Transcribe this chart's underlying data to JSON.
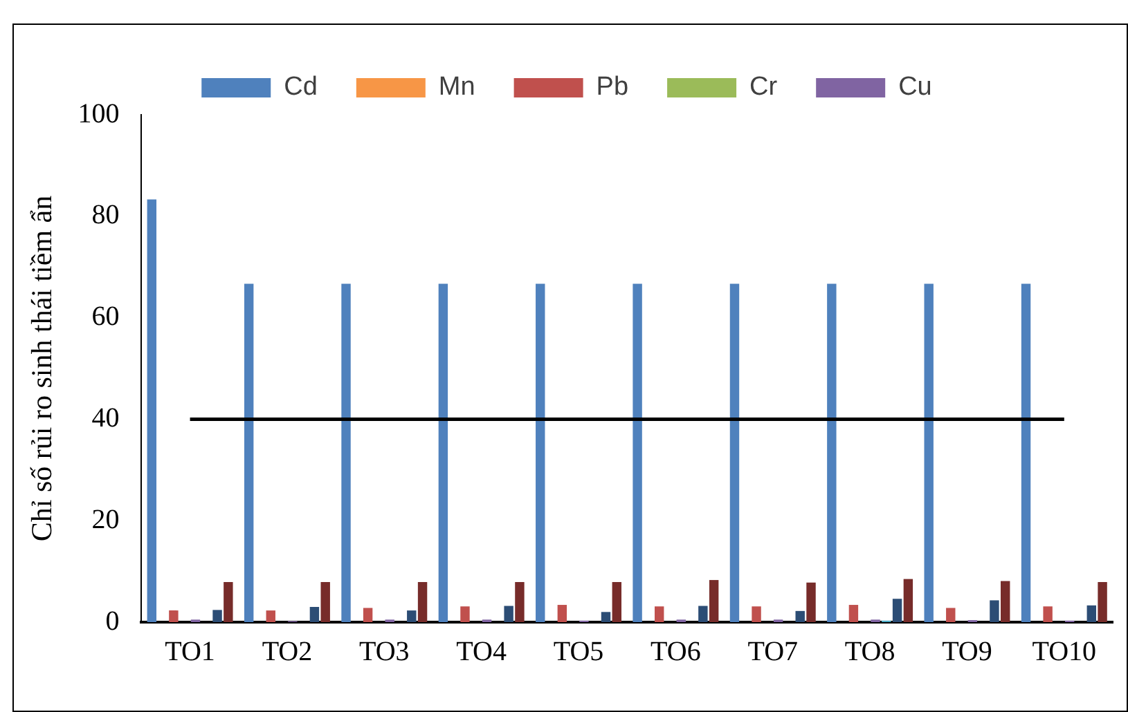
{
  "chart_data": {
    "type": "bar",
    "ylabel": "Chỉ số rủi ro sinh thái tiềm ẩn",
    "categories": [
      "TO1",
      "TO2",
      "TO3",
      "TO4",
      "TO5",
      "TO6",
      "TO7",
      "TO8",
      "TO9",
      "TO10"
    ],
    "series": [
      {
        "name": "Cd",
        "color": "#4f81bd",
        "values": [
          83.3,
          66.7,
          66.7,
          66.7,
          66.7,
          66.7,
          66.7,
          66.7,
          66.7,
          66.7
        ]
      },
      {
        "name": "Mn",
        "color": "#f79646",
        "values": [
          0,
          0,
          0,
          0,
          0,
          0,
          0,
          0,
          0,
          0
        ]
      },
      {
        "name": "Pb",
        "color": "#c0504d",
        "values": [
          2.3,
          2.3,
          2.8,
          3.1,
          3.4,
          3.1,
          3.1,
          3.4,
          2.8,
          3.1
        ]
      },
      {
        "name": "Cr",
        "color": "#9bbb59",
        "values": [
          0,
          0,
          0,
          0,
          0,
          0,
          0,
          0,
          0,
          0
        ]
      },
      {
        "name": "Cu",
        "color": "#8064a2",
        "values": [
          0.5,
          0.2,
          0.5,
          0.5,
          0.3,
          0.5,
          0.5,
          0.5,
          0.4,
          0.3
        ]
      },
      {
        "color": "#4bacc6",
        "values": [
          0,
          0,
          0,
          0,
          0,
          0,
          0,
          0.3,
          0,
          0
        ]
      },
      {
        "color": "#2c4d75",
        "values": [
          2.4,
          3.0,
          2.3,
          3.2,
          2.0,
          3.2,
          2.2,
          4.6,
          4.3,
          3.3
        ]
      },
      {
        "color": "#772c2a",
        "values": [
          7.9,
          7.9,
          7.9,
          7.9,
          7.9,
          8.3,
          7.8,
          8.5,
          8.1,
          7.9
        ]
      },
      {
        "type": "line",
        "color": "#000000",
        "values": [
          40,
          40,
          40,
          40,
          40,
          40,
          40,
          40,
          40,
          40
        ]
      }
    ],
    "ylim": [
      0,
      100
    ],
    "yticks": [
      0,
      20,
      40,
      60,
      80,
      100
    ],
    "grid": false,
    "legend": "top",
    "marker": "none"
  }
}
